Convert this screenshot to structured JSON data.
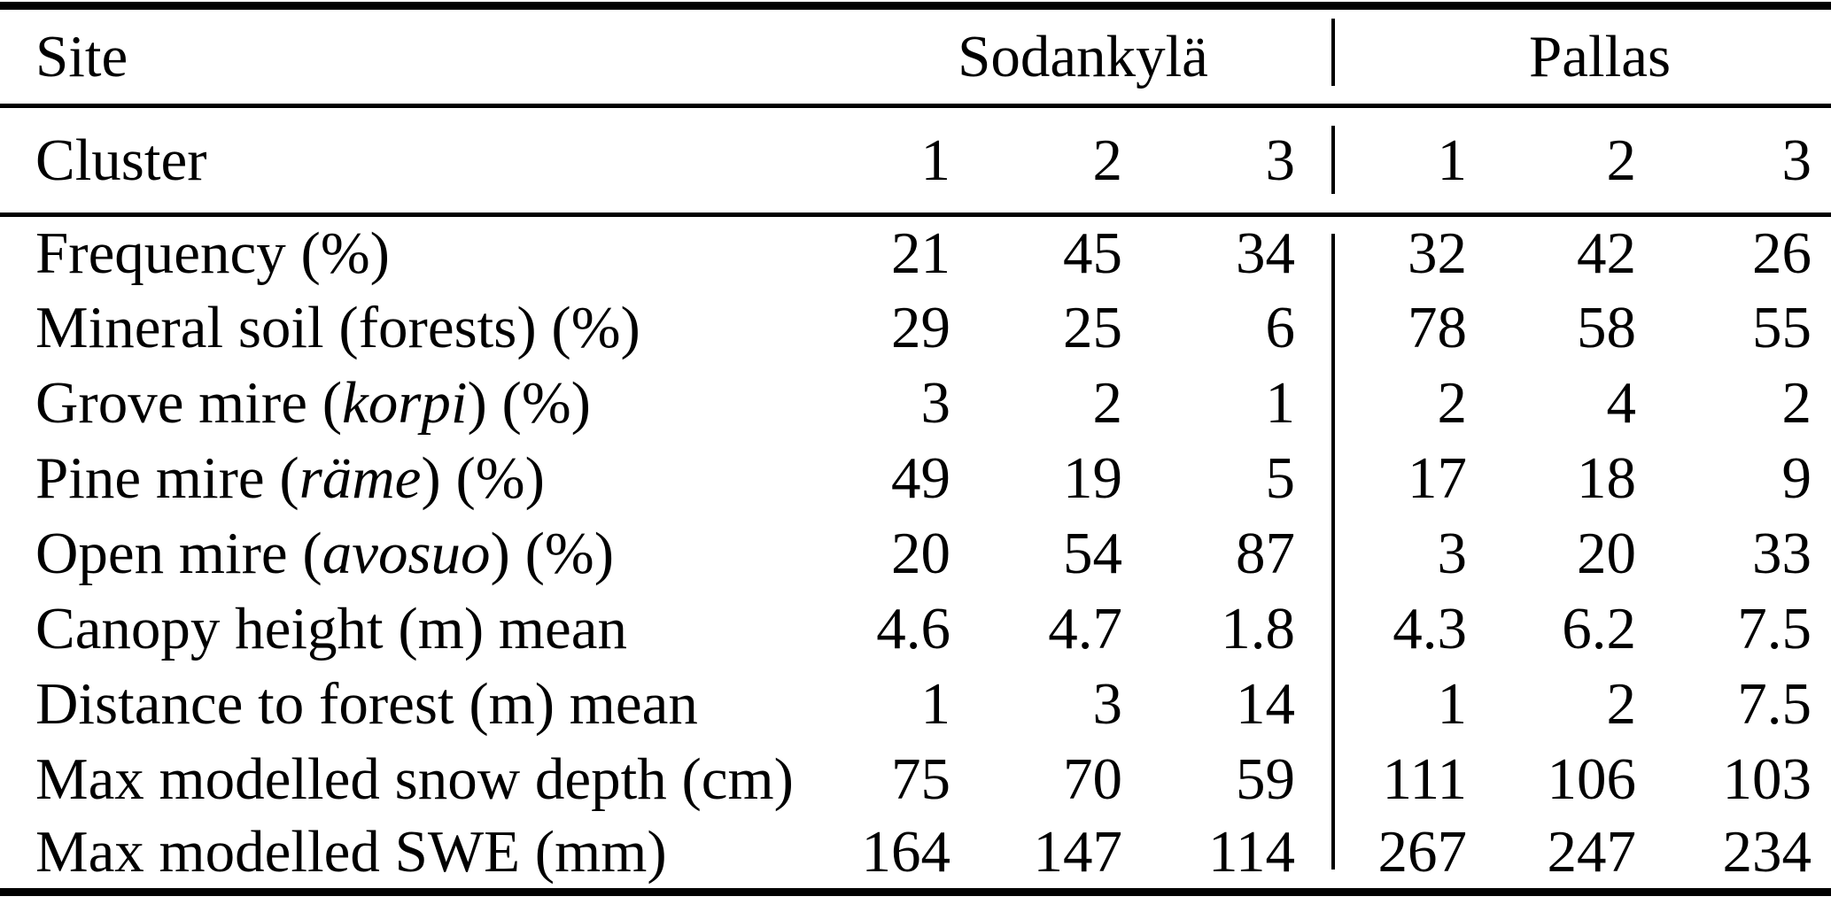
{
  "colors": {
    "text": "#000000",
    "background": "#ffffff",
    "rule": "#000000"
  },
  "table": {
    "header": {
      "site_label": "Site",
      "site_groups": [
        "Sodankylä",
        "Pallas"
      ],
      "cluster_label": "Cluster",
      "cluster_numbers": [
        "1",
        "2",
        "3",
        "1",
        "2",
        "3"
      ]
    },
    "rows": [
      {
        "pre": "Frequency (%)",
        "it": "",
        "post": "",
        "values": [
          "21",
          "45",
          "34",
          "32",
          "42",
          "26"
        ]
      },
      {
        "pre": "Mineral soil (forests) (%)",
        "it": "",
        "post": "",
        "values": [
          "29",
          "25",
          "6",
          "78",
          "58",
          "55"
        ]
      },
      {
        "pre": "Grove mire (",
        "it": "korpi",
        "post": ") (%)",
        "values": [
          "3",
          "2",
          "1",
          "2",
          "4",
          "2"
        ]
      },
      {
        "pre": "Pine mire (",
        "it": "räme",
        "post": ") (%)",
        "values": [
          "49",
          "19",
          "5",
          "17",
          "18",
          "9"
        ]
      },
      {
        "pre": "Open mire (",
        "it": "avosuo",
        "post": ") (%)",
        "values": [
          "20",
          "54",
          "87",
          "3",
          "20",
          "33"
        ]
      },
      {
        "pre": "Canopy height (m) mean",
        "it": "",
        "post": "",
        "values": [
          "4.6",
          "4.7",
          "1.8",
          "4.3",
          "6.2",
          "7.5"
        ]
      },
      {
        "pre": "Distance to forest (m) mean",
        "it": "",
        "post": "",
        "values": [
          "1",
          "3",
          "14",
          "1",
          "2",
          "7.5"
        ]
      },
      {
        "pre": "Max modelled snow depth (cm)",
        "it": "",
        "post": "",
        "values": [
          "75",
          "70",
          "59",
          "111",
          "106",
          "103"
        ]
      },
      {
        "pre": "Max modelled SWE (mm)",
        "it": "",
        "post": "",
        "values": [
          "164",
          "147",
          "114",
          "267",
          "247",
          "234"
        ]
      }
    ]
  }
}
